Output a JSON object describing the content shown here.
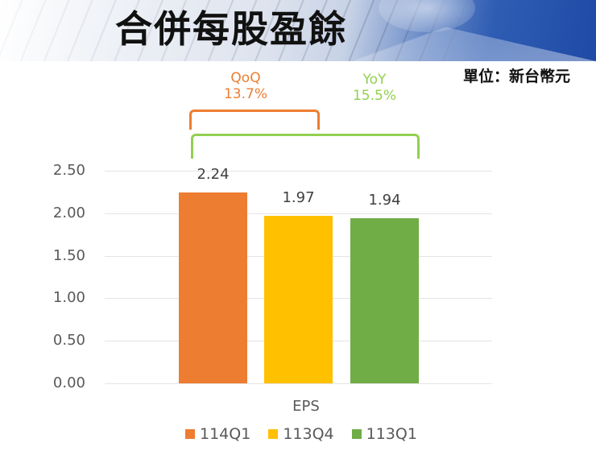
{
  "header": {
    "title": "合併每股盈餘",
    "unit": "單位：新台幣元"
  },
  "annotations": {
    "qoq": {
      "label": "QoQ",
      "value": "13.7%",
      "color": "#ED7D31"
    },
    "yoy": {
      "label": "YoY",
      "value": "15.5%",
      "color": "#92D050"
    }
  },
  "chart_data": {
    "type": "bar",
    "title": "合併每股盈餘",
    "subtitle": "單位：新台幣元",
    "categories": [
      "EPS"
    ],
    "series": [
      {
        "name": "114Q1",
        "values": [
          2.24
        ],
        "color": "#ED7D31"
      },
      {
        "name": "113Q4",
        "values": [
          1.97
        ],
        "color": "#FFC000"
      },
      {
        "name": "113Q1",
        "values": [
          1.94
        ],
        "color": "#70AD47"
      }
    ],
    "xlabel": "EPS",
    "ylabel": "",
    "ylim": [
      0,
      2.5
    ],
    "yticks": [
      "0.00",
      "0.50",
      "1.00",
      "1.50",
      "2.00",
      "2.50"
    ],
    "data_labels": [
      "2.24",
      "1.97",
      "1.94"
    ],
    "grid": true,
    "legend_position": "bottom",
    "annotations": [
      "QoQ 13.7%",
      "YoY 15.5%"
    ]
  }
}
